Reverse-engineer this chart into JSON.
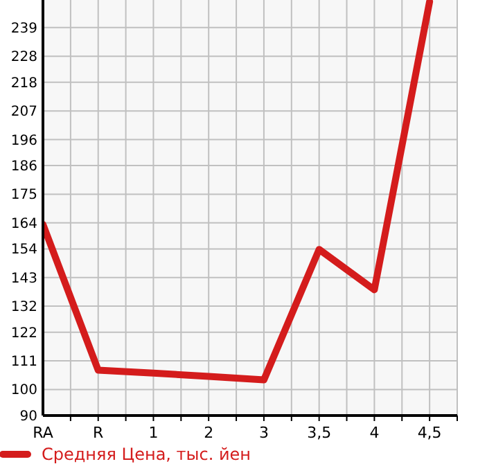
{
  "chart_data": {
    "type": "line",
    "categories": [
      "RA",
      "R",
      "1",
      "2",
      "3",
      "3,5",
      "4",
      "4,5"
    ],
    "series": [
      {
        "name": "Средняя Цена, тыс. йен",
        "color": "#d41c1c",
        "values": [
          163.4,
          107.4,
          106.3,
          105,
          103.7,
          153.8,
          138.3,
          249
        ]
      }
    ],
    "ylim": [
      90,
      249.6
    ],
    "yticks": [
      90,
      100,
      111,
      122,
      132,
      143,
      154,
      164,
      175,
      186,
      196,
      207,
      218,
      228,
      239
    ],
    "grid": true,
    "legend": "bottom left",
    "marker": "none",
    "line_style": "solid"
  }
}
